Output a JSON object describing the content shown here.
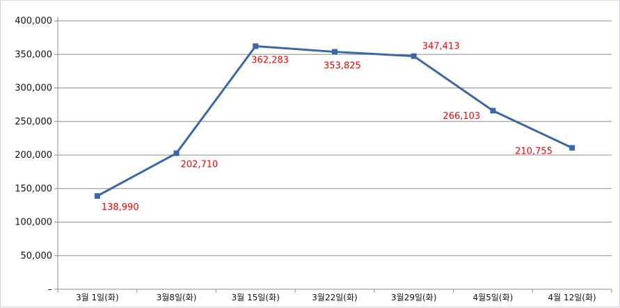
{
  "chart_data": {
    "type": "line",
    "title": "",
    "xlabel": "",
    "ylabel": "",
    "categories": [
      "3월 1일(화)",
      "3월8일(화)",
      "3월 15일(화)",
      "3월22일(화)",
      "3월29일(화)",
      "4월5일(화)",
      "4월 12일(화)"
    ],
    "series": [
      {
        "values": [
          138990,
          202710,
          362283,
          353825,
          347413,
          266103,
          210755
        ],
        "data_labels": [
          "138,990",
          "202,710",
          "362,283",
          "353,825",
          "347,413",
          "266,103",
          "210,755"
        ],
        "color": "#3b67a3",
        "marker": "square"
      }
    ],
    "ylim": [
      0,
      400000
    ],
    "y_ticks": [
      0,
      50000,
      100000,
      150000,
      200000,
      250000,
      300000,
      350000,
      400000
    ],
    "y_tick_labels": [
      "–",
      "50,000",
      "100,000",
      "150,000",
      "200,000",
      "250,000",
      "300,000",
      "350,000",
      "400,000"
    ],
    "grid": "horizontal",
    "legend": "none",
    "colors": {
      "line": "#3b67a3",
      "data_label": "#ff0000",
      "grid": "#8c8c8c",
      "axis": "#8c8c8c",
      "frame": "#c9d3de"
    }
  }
}
